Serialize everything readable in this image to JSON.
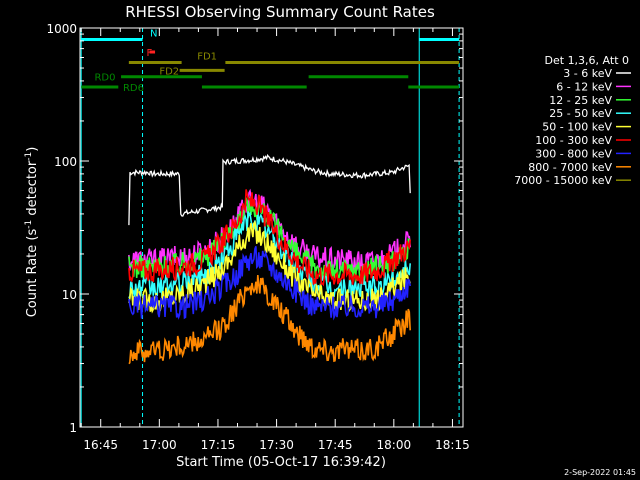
{
  "chart_data": {
    "type": "line",
    "title": "RHESSI Observing Summary Count Rates",
    "xlabel": "Start Time (05-Oct-17 16:39:42)",
    "ylabel_main": "Count Rate (s",
    "ylabel_sup1": "-1",
    "ylabel_mid": " detector",
    "ylabel_sup2": "-1",
    "ylabel_end": ")",
    "y_scale": "log",
    "ylim": [
      1,
      1000
    ],
    "xlim_min": [
      0,
      98
    ],
    "x_ticks": [
      {
        "min": 5.3,
        "label": "16:45"
      },
      {
        "min": 20.3,
        "label": "17:00"
      },
      {
        "min": 35.3,
        "label": "17:15"
      },
      {
        "min": 50.3,
        "label": "17:30"
      },
      {
        "min": 65.3,
        "label": "17:45"
      },
      {
        "min": 80.3,
        "label": "18:00"
      },
      {
        "min": 95.3,
        "label": "18:15"
      }
    ],
    "y_ticks": [
      {
        "value": 1,
        "label": "1"
      },
      {
        "value": 10,
        "label": "10"
      },
      {
        "value": 100,
        "label": "100"
      },
      {
        "value": 1000,
        "label": "1000"
      }
    ],
    "legend_title": "Det 1,3,6, Att 0",
    "legend_position": "right",
    "footer_date": "2-Sep-2022 01:45",
    "series": [
      {
        "name": "3 - 6 keV",
        "color": "#ffffff",
        "x": [
          12.5,
          12.8,
          17.8,
          18.0,
          25.4,
          25.8,
          36.4,
          36.6,
          40,
          44,
          48,
          52,
          56,
          60,
          64,
          68,
          72,
          76,
          80,
          82.3,
          84.2,
          84.5
        ],
        "values": [
          33,
          82,
          82,
          80,
          80,
          40,
          45,
          98,
          100,
          102,
          106,
          100,
          92,
          84,
          80,
          79,
          78,
          80,
          82,
          88,
          92,
          58
        ]
      },
      {
        "name": "6 - 12 keV",
        "color": "#ff33ff",
        "x": [
          12.5,
          20,
          26,
          32,
          36,
          40,
          42.5,
          45,
          48,
          52,
          56,
          60,
          64,
          68,
          72,
          76,
          80,
          84.5
        ],
        "values": [
          18,
          18,
          19,
          21,
          26,
          35,
          48,
          50,
          42,
          30,
          22,
          19,
          18,
          18,
          17,
          18,
          20,
          25
        ]
      },
      {
        "name": "12 - 25 keV",
        "color": "#33ff33",
        "x": [
          12.5,
          20,
          26,
          32,
          36,
          40,
          42.5,
          45,
          48,
          52,
          56,
          60,
          64,
          68,
          72,
          76,
          80,
          84.5
        ],
        "values": [
          16,
          16,
          17,
          19,
          24,
          33,
          45,
          46,
          38,
          27,
          19,
          16,
          15,
          15,
          15,
          16,
          18,
          22
        ]
      },
      {
        "name": "25 - 50 keV",
        "color": "#33ffff",
        "x": [
          12.5,
          20,
          26,
          32,
          36,
          40,
          42.5,
          45,
          48,
          52,
          56,
          60,
          64,
          68,
          72,
          76,
          80,
          84.5
        ],
        "values": [
          11,
          11,
          12,
          14,
          18,
          26,
          35,
          36,
          30,
          21,
          15,
          12,
          11,
          11,
          11,
          11,
          13,
          17
        ]
      },
      {
        "name": "50 - 100 keV",
        "color": "#ffff33",
        "x": [
          12.5,
          20,
          26,
          32,
          36,
          40,
          42.5,
          45,
          48,
          52,
          56,
          60,
          64,
          68,
          72,
          76,
          80,
          84.5
        ],
        "values": [
          9,
          9,
          10,
          12,
          15,
          21,
          28,
          29,
          24,
          17,
          12,
          10,
          9,
          9,
          9,
          9,
          11,
          14
        ]
      },
      {
        "name": "100 - 300 keV",
        "color": "#ff0000",
        "x": [
          12.5,
          20,
          26,
          32,
          36,
          40,
          42.5,
          45,
          48,
          52,
          56,
          60,
          64,
          68,
          72,
          76,
          80,
          84.5
        ],
        "values": [
          15,
          15,
          16,
          18,
          24,
          34,
          50,
          48,
          36,
          24,
          17,
          14,
          14,
          14,
          14,
          15,
          18,
          23
        ]
      },
      {
        "name": "300 - 800 keV",
        "color": "#2222ff",
        "x": [
          12.5,
          20,
          26,
          32,
          36,
          40,
          42.5,
          45,
          48,
          52,
          56,
          60,
          64,
          68,
          72,
          76,
          80,
          84.5
        ],
        "values": [
          8,
          8,
          8,
          9,
          11,
          14,
          18,
          19,
          17,
          13,
          10,
          8,
          8,
          8,
          8,
          8,
          9,
          12
        ]
      },
      {
        "name": "800 - 7000 keV",
        "color": "#ff8800",
        "x": [
          12.5,
          20,
          26,
          32,
          36,
          40,
          42.5,
          45,
          48,
          52,
          56,
          60,
          64,
          68,
          72,
          76,
          80,
          84.5
        ],
        "values": [
          3.6,
          3.8,
          4,
          4.5,
          5.5,
          8,
          11,
          12,
          10,
          7,
          5,
          4,
          3.8,
          3.8,
          3.8,
          4,
          5,
          6.5
        ]
      },
      {
        "name": "7000 - 15000 keV",
        "color": "#888800",
        "x": [],
        "values": []
      }
    ],
    "flag_bars": [
      {
        "label": "N",
        "color": "#00ffff",
        "y_value": 820,
        "label_side": "top",
        "segments": [
          [
            0.3,
            16
          ],
          [
            86.8,
            97
          ]
        ],
        "label_min": 17.9
      },
      {
        "label": "F",
        "color": "#ff2222",
        "y_value": 660,
        "label_side": "left",
        "segments": [
          [
            17.8,
            19.2
          ]
        ],
        "label_min": 17.0
      },
      {
        "label": "FD1",
        "color": "#888800",
        "y_value": 550,
        "label_side": "top",
        "segments": [
          [
            12.5,
            26.0
          ],
          [
            37.2,
            97
          ]
        ],
        "label_min": 30.0
      },
      {
        "label": "FD2",
        "color": "#888800",
        "y_value": 480,
        "label_side": "left",
        "segments": [
          [
            25.5,
            37.0
          ]
        ],
        "label_min": 20.3
      },
      {
        "label": "RD0",
        "color": "#008800",
        "y_value": 430,
        "label_side": "left",
        "segments": [
          [
            10.5,
            31.2
          ],
          [
            58.5,
            84.0
          ]
        ],
        "label_min": 3.7
      },
      {
        "label": "RD6",
        "color": "#008800",
        "y_value": 360,
        "label_side": "right",
        "segments": [
          [
            0.3,
            9.8
          ],
          [
            31.2,
            58.0
          ],
          [
            84.0,
            97
          ]
        ],
        "label_min": 11.0
      }
    ],
    "vlines": [
      {
        "min": 0.3,
        "color": "#00ffff",
        "style": "solid"
      },
      {
        "min": 16.0,
        "color": "#00ffff",
        "style": "dashed"
      },
      {
        "min": 86.8,
        "color": "#00ffff",
        "style": "solid"
      },
      {
        "min": 97.0,
        "color": "#00ffff",
        "style": "dashed"
      }
    ]
  }
}
